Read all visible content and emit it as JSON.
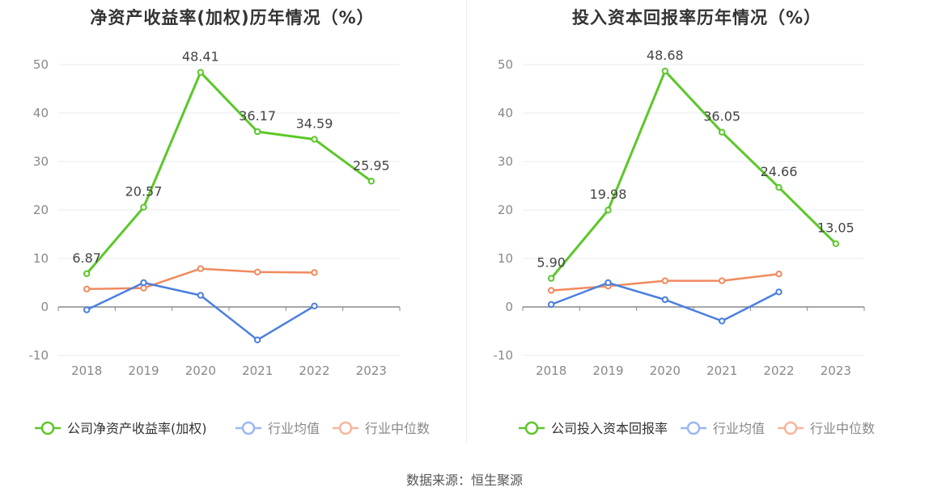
{
  "chart_data": [
    {
      "type": "line",
      "title": "净资产收益率(加权)历年情况（%）",
      "categories": [
        "2018",
        "2019",
        "2020",
        "2021",
        "2022",
        "2023"
      ],
      "ylim": [
        -10,
        50
      ],
      "yticks": [
        -10,
        0,
        10,
        20,
        30,
        40,
        50
      ],
      "grid": true,
      "legend_position": "bottom",
      "series": [
        {
          "name": "公司净资产收益率(加权)",
          "color": "#5cc72a",
          "values": [
            6.87,
            20.57,
            48.41,
            36.17,
            34.59,
            25.95
          ],
          "labels": [
            "6.87",
            "20.57",
            "48.41",
            "36.17",
            "34.59",
            "25.95"
          ]
        },
        {
          "name": "行业均值",
          "color": "#4b7fe0",
          "values": [
            -0.6,
            5.0,
            2.4,
            -6.8,
            0.2,
            null
          ]
        },
        {
          "name": "行业中位数",
          "color": "#f08a5d",
          "values": [
            3.7,
            3.9,
            7.9,
            7.2,
            7.1,
            null
          ]
        }
      ]
    },
    {
      "type": "line",
      "title": "投入资本回报率历年情况（%）",
      "categories": [
        "2018",
        "2019",
        "2020",
        "2021",
        "2022",
        "2023"
      ],
      "ylim": [
        -10,
        50
      ],
      "yticks": [
        -10,
        0,
        10,
        20,
        30,
        40,
        50
      ],
      "grid": true,
      "legend_position": "bottom",
      "series": [
        {
          "name": "公司投入资本回报率",
          "color": "#5cc72a",
          "values": [
            5.9,
            19.98,
            48.68,
            36.05,
            24.66,
            13.05
          ],
          "labels": [
            "5.90",
            "19.98",
            "48.68",
            "36.05",
            "24.66",
            "13.05"
          ]
        },
        {
          "name": "行业均值",
          "color": "#4b7fe0",
          "values": [
            0.5,
            5.0,
            1.5,
            -2.9,
            3.1,
            null
          ]
        },
        {
          "name": "行业中位数",
          "color": "#f08a5d",
          "values": [
            3.4,
            4.3,
            5.4,
            5.4,
            6.8,
            null
          ]
        }
      ]
    }
  ],
  "footer": {
    "source": "数据来源：恒生聚源"
  }
}
